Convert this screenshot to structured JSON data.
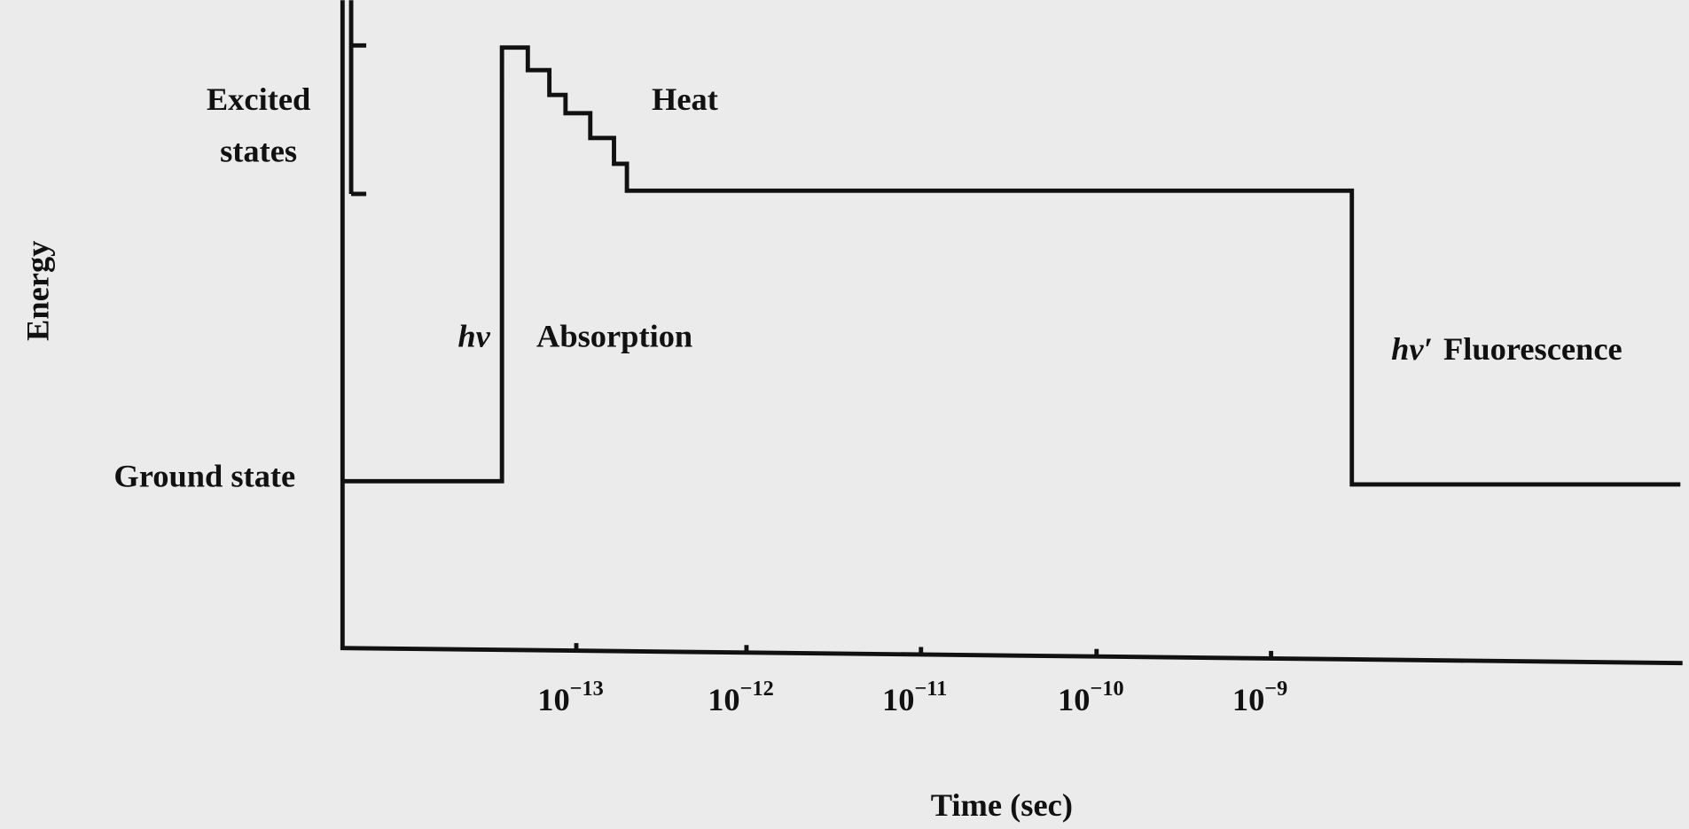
{
  "labels": {
    "y_axis": "Energy",
    "x_axis": "Time (sec)",
    "excited_1": "Excited",
    "excited_2": "states",
    "ground": "Ground state",
    "absorption_symbol": "hν",
    "absorption": "Absorption",
    "heat": "Heat",
    "fluorescence_symbol": "hν′",
    "fluorescence": "Fluorescence"
  },
  "x_ticks": [
    {
      "base": "10",
      "exp": "−13"
    },
    {
      "base": "10",
      "exp": "−12"
    },
    {
      "base": "10",
      "exp": "−11"
    },
    {
      "base": "10",
      "exp": "−10"
    },
    {
      "base": "10",
      "exp": "−9"
    }
  ]
}
